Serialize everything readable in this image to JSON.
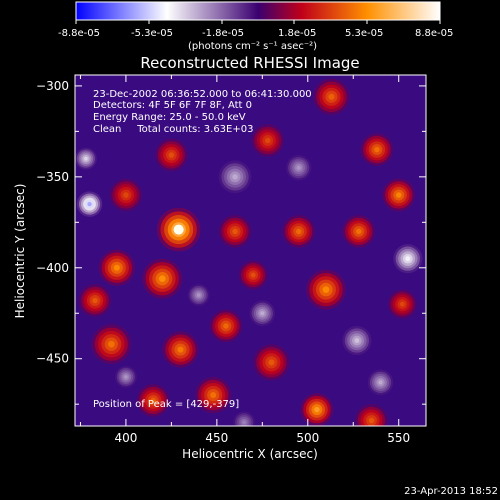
{
  "colorbar": {
    "tick_labels": [
      "-8.8e-05",
      "-5.3e-05",
      "-1.8e-05",
      "1.8e-05",
      "5.3e-05",
      "8.8e-05"
    ],
    "unit_label": "(photons cm⁻² s⁻¹ asec⁻²)"
  },
  "title": "Reconstructed RHESSI Image",
  "annotations": [
    "23-Dec-2002 06:36:52.000 to 06:41:30.000",
    "Detectors: 4F 5F 6F 7F 8F, Att 0",
    "Energy Range: 25.0 - 50.0 keV",
    "Clean     Total counts: 3.63E+03"
  ],
  "peak_label": "Position of Peak = [429,-379]",
  "footer_timestamp": "23-Apr-2013 18:52",
  "chart_data": {
    "type": "heatmap",
    "title": "Reconstructed RHESSI Image",
    "xlabel": "Heliocentric X (arcsec)",
    "ylabel": "Heliocentric Y (arcsec)",
    "xlim": [
      372,
      565
    ],
    "ylim": [
      -487,
      -294
    ],
    "x_ticks": [
      400,
      450,
      500,
      550
    ],
    "y_ticks": [
      -300,
      -350,
      -400,
      -450
    ],
    "color_range": [
      -8.8e-05,
      8.8e-05
    ],
    "colormap": "blue-white-purple-red-yellow-white",
    "peak_position": [
      429,
      -379
    ],
    "grid": false,
    "blobs": [
      {
        "x": 429,
        "y": -379,
        "s": 12,
        "a": 1.0
      },
      {
        "x": 420,
        "y": -406,
        "s": 11,
        "a": 0.72
      },
      {
        "x": 395,
        "y": -400,
        "s": 10,
        "a": 0.7
      },
      {
        "x": 383,
        "y": -418,
        "s": 9,
        "a": 0.55
      },
      {
        "x": 460,
        "y": -380,
        "s": 9,
        "a": 0.55
      },
      {
        "x": 392,
        "y": -442,
        "s": 11,
        "a": 0.62
      },
      {
        "x": 430,
        "y": -445,
        "s": 10,
        "a": 0.65
      },
      {
        "x": 455,
        "y": -432,
        "s": 9,
        "a": 0.6
      },
      {
        "x": 480,
        "y": -452,
        "s": 10,
        "a": 0.55
      },
      {
        "x": 415,
        "y": -473,
        "s": 9,
        "a": 0.58
      },
      {
        "x": 448,
        "y": -470,
        "s": 10,
        "a": 0.62
      },
      {
        "x": 505,
        "y": -478,
        "s": 9,
        "a": 0.78
      },
      {
        "x": 535,
        "y": -484,
        "s": 9,
        "a": 0.55
      },
      {
        "x": 510,
        "y": -412,
        "s": 11,
        "a": 0.7
      },
      {
        "x": 528,
        "y": -380,
        "s": 9,
        "a": 0.62
      },
      {
        "x": 550,
        "y": -360,
        "s": 9,
        "a": 0.68
      },
      {
        "x": 495,
        "y": -380,
        "s": 9,
        "a": 0.6
      },
      {
        "x": 538,
        "y": -335,
        "s": 9,
        "a": 0.62
      },
      {
        "x": 513,
        "y": -306,
        "s": 10,
        "a": 0.58
      },
      {
        "x": 478,
        "y": -330,
        "s": 9,
        "a": 0.5
      },
      {
        "x": 425,
        "y": -338,
        "s": 9,
        "a": 0.52
      },
      {
        "x": 552,
        "y": -420,
        "s": 8,
        "a": 0.5
      },
      {
        "x": 470,
        "y": -404,
        "s": 8,
        "a": 0.52
      },
      {
        "x": 400,
        "y": -360,
        "s": 9,
        "a": 0.5
      },
      {
        "x": 380,
        "y": -365,
        "s": 7,
        "a": -0.8
      },
      {
        "x": 378,
        "y": -340,
        "s": 6,
        "a": -0.5
      },
      {
        "x": 460,
        "y": -350,
        "s": 9,
        "a": -0.4
      },
      {
        "x": 555,
        "y": -395,
        "s": 8,
        "a": -0.6
      },
      {
        "x": 527,
        "y": -440,
        "s": 8,
        "a": -0.45
      },
      {
        "x": 475,
        "y": -425,
        "s": 7,
        "a": -0.4
      },
      {
        "x": 495,
        "y": -345,
        "s": 7,
        "a": -0.35
      },
      {
        "x": 440,
        "y": -415,
        "s": 6,
        "a": -0.35
      },
      {
        "x": 400,
        "y": -460,
        "s": 6,
        "a": -0.35
      },
      {
        "x": 540,
        "y": -463,
        "s": 7,
        "a": -0.4
      },
      {
        "x": 465,
        "y": -485,
        "s": 6,
        "a": -0.3
      }
    ]
  }
}
